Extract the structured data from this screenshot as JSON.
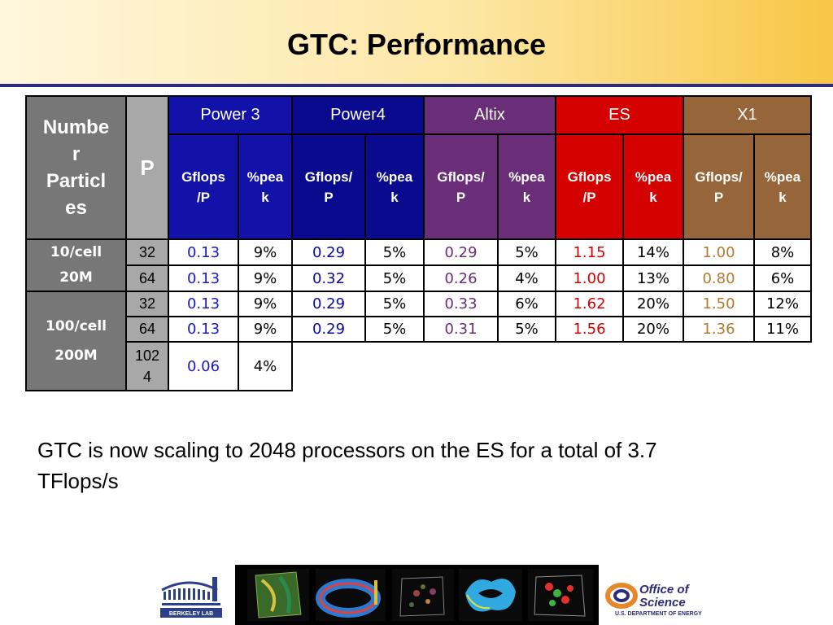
{
  "title": "GTC: Performance",
  "table": {
    "header_number": "Number Particles",
    "header_number_lines": [
      "Numbe",
      "r",
      "Particl",
      "es"
    ],
    "header_p": "P",
    "groups": [
      {
        "name": "Power 3",
        "sub1": [
          "Gflops",
          "/P"
        ],
        "sub2": [
          "%pea",
          "k"
        ]
      },
      {
        "name": "Power4",
        "sub1": [
          "Gflops/",
          "P"
        ],
        "sub2": [
          "%pea",
          "k"
        ]
      },
      {
        "name": "Altix",
        "sub1": [
          "Gflops/",
          "P"
        ],
        "sub2": [
          "%pea",
          "k"
        ]
      },
      {
        "name": "ES",
        "sub1": [
          "Gflops",
          "/P"
        ],
        "sub2": [
          "%pea",
          "k"
        ]
      },
      {
        "name": "X1",
        "sub1": [
          "Gflops/",
          "P"
        ],
        "sub2": [
          "%pea",
          "k"
        ]
      }
    ],
    "section1": {
      "line1": "10/cell",
      "line2": "20M"
    },
    "section2": {
      "line1": "100/cell",
      "line2": "200M"
    },
    "rows": [
      {
        "p": "32",
        "vals": [
          "0.13",
          "9%",
          "0.29",
          "5%",
          "0.29",
          "5%",
          "1.15",
          "14%",
          "1.00",
          "8%"
        ]
      },
      {
        "p": "64",
        "vals": [
          "0.13",
          "9%",
          "0.32",
          "5%",
          "0.26",
          "4%",
          "1.00",
          "13%",
          "0.80",
          "6%"
        ]
      },
      {
        "p": "32",
        "vals": [
          "0.13",
          "9%",
          "0.29",
          "5%",
          "0.33",
          "6%",
          "1.62",
          "20%",
          "1.50",
          "12%"
        ]
      },
      {
        "p": "64",
        "vals": [
          "0.13",
          "9%",
          "0.29",
          "5%",
          "0.31",
          "5%",
          "1.56",
          "20%",
          "1.36",
          "11%"
        ]
      },
      {
        "p_lines": [
          "102",
          "4"
        ],
        "p": "1024",
        "vals": [
          "0.06",
          "4%"
        ]
      }
    ]
  },
  "caption": "GTC is now scaling to 2048 processors on the ES for a total of 3.7 TFlops/s",
  "footer": {
    "berkeley_logo_text": "BERKELEY LAB",
    "doe_logo_line1": "Office of",
    "doe_logo_line2": "Science",
    "doe_logo_line3": "U.S. DEPARTMENT OF ENERGY"
  },
  "colors": {
    "power3": "#1212a8",
    "power4": "#0a0a8e",
    "altix": "#6a2d78",
    "es": "#d50000",
    "x1": "#96663a",
    "row_label_bg": "#777777"
  }
}
